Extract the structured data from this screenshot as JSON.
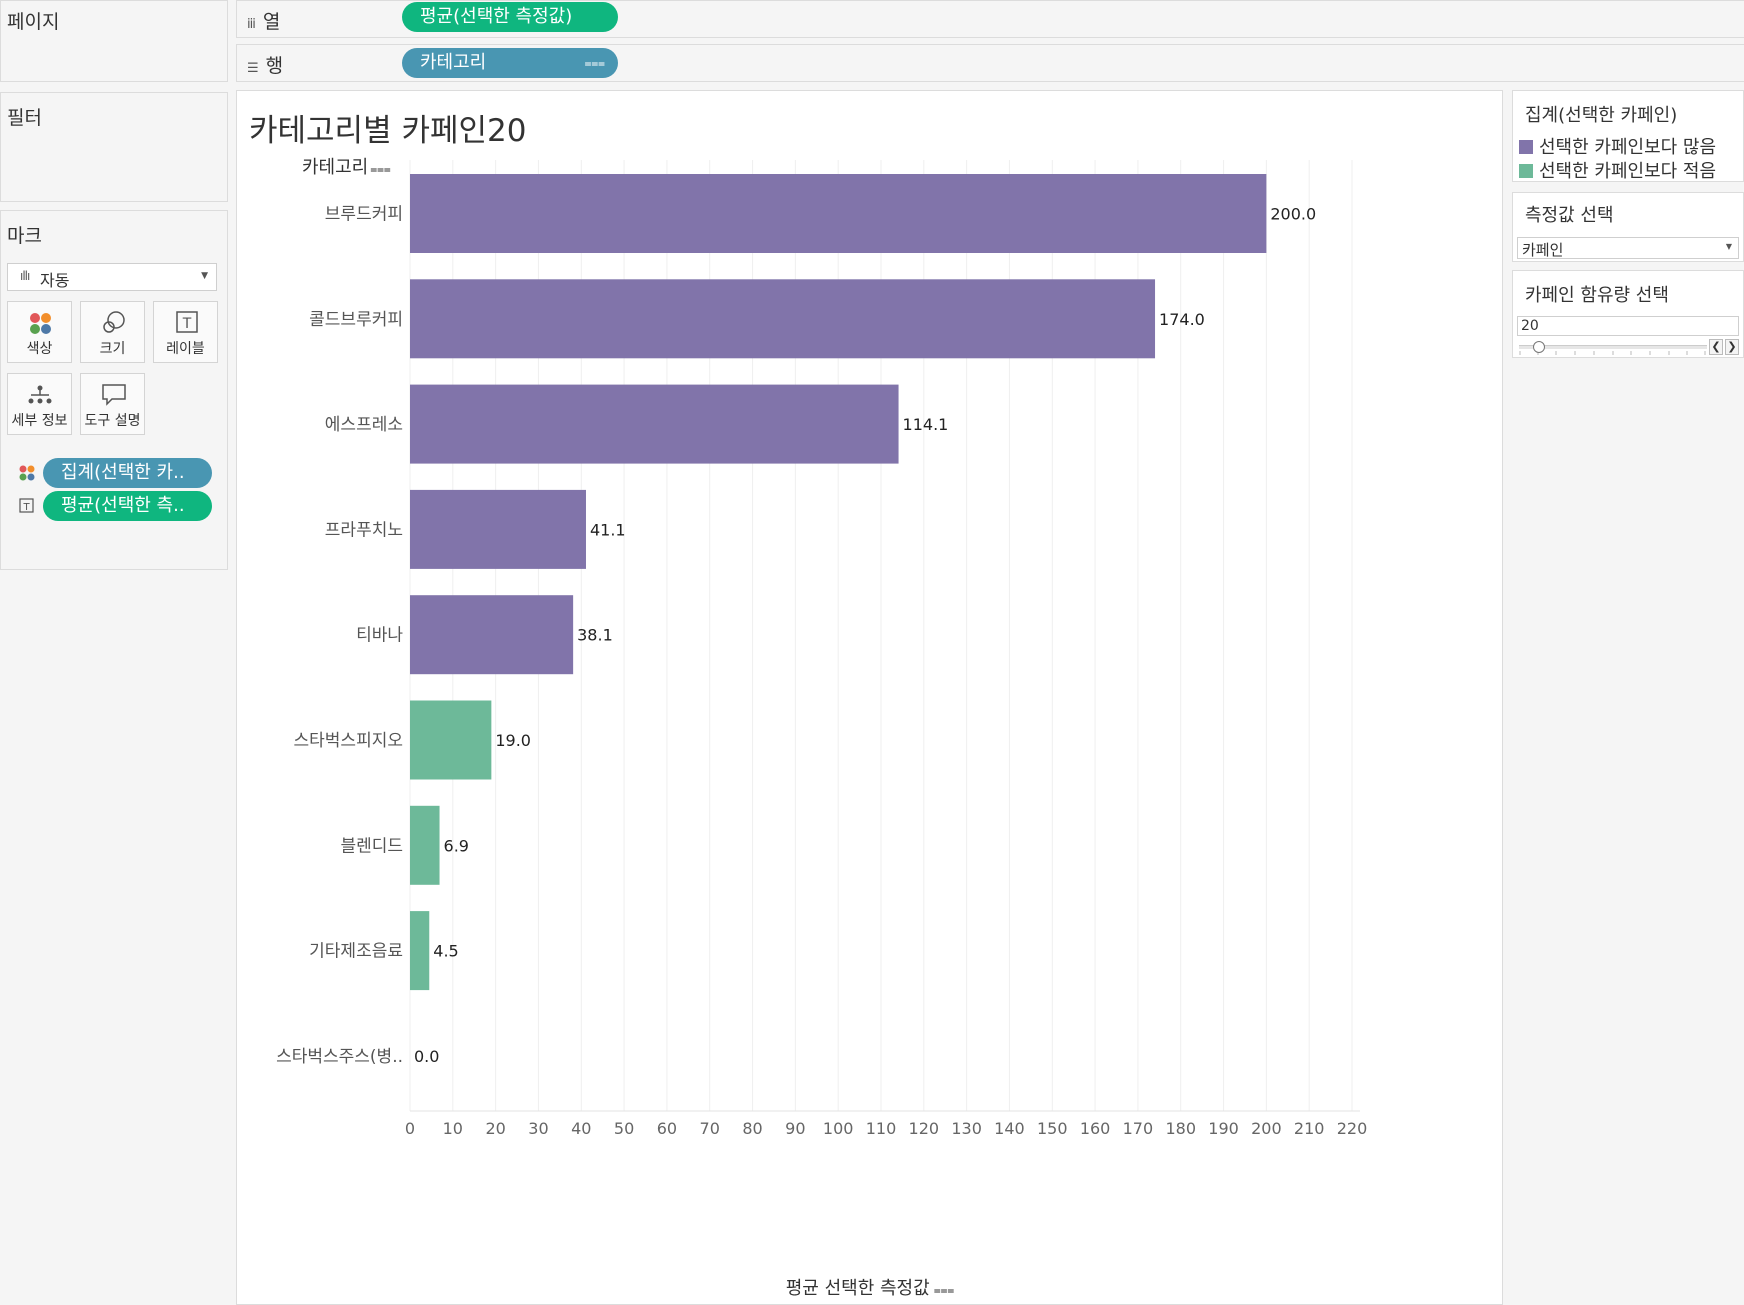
{
  "pages_panel": {
    "title": "페이지"
  },
  "filters_panel": {
    "title": "필터"
  },
  "marks_panel": {
    "title": "마크",
    "mark_type": "자동",
    "buttons": {
      "color": "색상",
      "size": "크기",
      "label": "레이블",
      "detail": "세부 정보",
      "tooltip": "도구 설명"
    },
    "pills": {
      "color_pill": "집계(선택한 카..",
      "label_pill": "평균(선택한 측.."
    }
  },
  "shelves": {
    "columns": {
      "label": "열",
      "pill": "평균(선택한 측정값)"
    },
    "rows": {
      "label": "행",
      "pill": "카테고리"
    }
  },
  "colors": {
    "more": "#8174aa",
    "less": "#6db999",
    "green_pill": "#0fb67f",
    "blue_pill": "#4996b2"
  },
  "chart_data": {
    "type": "bar",
    "orientation": "horizontal",
    "title": "카테고리별 카페인20",
    "ylabel": "카테고리",
    "xlabel": "평균 선택한 측정값",
    "categories": [
      "브루드커피",
      "콜드브루커피",
      "에스프레소",
      "프라푸치노",
      "티바나",
      "스타벅스피지오",
      "블렌디드",
      "기타제조음료",
      "스타벅스주스(병.."
    ],
    "values": [
      200.0,
      174.0,
      114.1,
      41.1,
      38.1,
      19.0,
      6.9,
      4.5,
      0.0
    ],
    "value_labels": [
      "200.0",
      "174.0",
      "114.1",
      "41.1",
      "38.1",
      "19.0",
      "6.9",
      "4.5",
      "0.0"
    ],
    "groups": [
      "more",
      "more",
      "more",
      "more",
      "more",
      "less",
      "less",
      "less",
      "less"
    ],
    "xlim": [
      0,
      220
    ],
    "x_ticks": [
      0,
      10,
      20,
      30,
      40,
      50,
      60,
      70,
      80,
      90,
      100,
      110,
      120,
      130,
      140,
      150,
      160,
      170,
      180,
      190,
      200,
      210,
      220
    ],
    "gridlines": "vertical"
  },
  "legend": {
    "title": "집계(선택한 카페인)",
    "items": [
      {
        "label": "선택한 카페인보다 많음",
        "color": "#8174aa"
      },
      {
        "label": "선택한 카페인보다 적음",
        "color": "#6db999"
      }
    ]
  },
  "measure_param": {
    "title": "측정값 선택",
    "value": "카페인"
  },
  "caffeine_param": {
    "title": "카페인 함유량 선택",
    "value": "20"
  }
}
